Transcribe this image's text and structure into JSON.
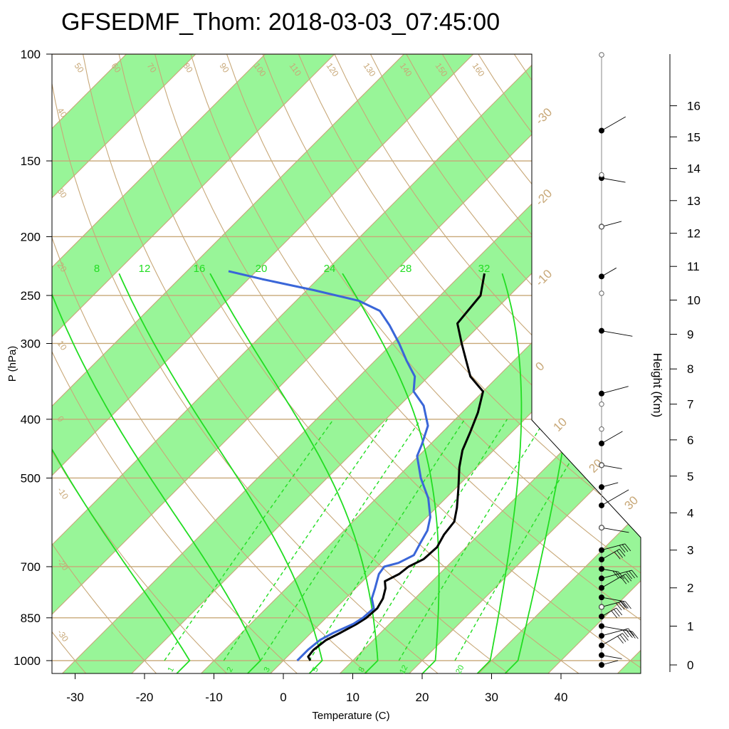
{
  "chart_data": {
    "type": "skew-t",
    "title": "GFSEDMF_Thom: 2018-03-03_07:45:00",
    "xlabel": "Temperature (C)",
    "ylabel": "P (hPa)",
    "y2label": "Height (Km)",
    "xlim": [
      -34,
      52
    ],
    "ylim": [
      1050,
      100
    ],
    "x_ticks": [
      -30,
      -20,
      -10,
      0,
      10,
      20,
      30,
      40
    ],
    "p_ticks": [
      100,
      150,
      200,
      250,
      300,
      400,
      500,
      700,
      850,
      1000
    ],
    "height_ticks": [
      0,
      1,
      2,
      3,
      4,
      5,
      6,
      7,
      8,
      9,
      10,
      11,
      12,
      13,
      14,
      15,
      16
    ],
    "isotherm_labels": [
      "-30",
      "-20",
      "-10",
      "0",
      "10",
      "20",
      "30"
    ],
    "dry_adiabat_labels": [
      "-30",
      "-20",
      "-10",
      "0",
      "10",
      "20",
      "30",
      "40",
      "50",
      "60",
      "70",
      "80",
      "90",
      "100",
      "110",
      "120",
      "130",
      "140",
      "150",
      "160"
    ],
    "moist_adiabat_labels": [
      "8",
      "12",
      "16",
      "20",
      "24",
      "28",
      "32"
    ],
    "mixing_ratio_labels": [
      "1",
      "2",
      "3",
      "5",
      "8",
      "12",
      "20"
    ],
    "colors": {
      "temperature": "#000000",
      "dewpoint": "#3a66d8",
      "isotherm_band": "#98f598",
      "isotherm_line": "#c8a878",
      "moist_adiabat": "#22dd22",
      "wind": "#000000"
    },
    "series": [
      {
        "name": "temperature",
        "points": [
          {
            "p": 1000,
            "t": 3.9
          },
          {
            "p": 985,
            "t": 3.0
          },
          {
            "p": 960,
            "t": 2.8
          },
          {
            "p": 925,
            "t": 3.2
          },
          {
            "p": 900,
            "t": 4.2
          },
          {
            "p": 870,
            "t": 5.3
          },
          {
            "p": 850,
            "t": 5.8
          },
          {
            "p": 820,
            "t": 6.0
          },
          {
            "p": 790,
            "t": 5.4
          },
          {
            "p": 760,
            "t": 4.3
          },
          {
            "p": 740,
            "t": 3.2
          },
          {
            "p": 720,
            "t": 4.2
          },
          {
            "p": 700,
            "t": 4.5
          },
          {
            "p": 680,
            "t": 5.6
          },
          {
            "p": 650,
            "t": 5.8
          },
          {
            "p": 620,
            "t": 5.0
          },
          {
            "p": 590,
            "t": 4.6
          },
          {
            "p": 560,
            "t": 3.0
          },
          {
            "p": 520,
            "t": 0.4
          },
          {
            "p": 480,
            "t": -2.5
          },
          {
            "p": 450,
            "t": -4.5
          },
          {
            "p": 420,
            "t": -6.0
          },
          {
            "p": 390,
            "t": -7.7
          },
          {
            "p": 360,
            "t": -10.0
          },
          {
            "p": 340,
            "t": -14.0
          },
          {
            "p": 300,
            "t": -20.0
          },
          {
            "p": 278,
            "t": -23.5
          },
          {
            "p": 250,
            "t": -24.2
          },
          {
            "p": 230,
            "t": -26.8
          }
        ]
      },
      {
        "name": "dewpoint",
        "points": [
          {
            "p": 1000,
            "t": 2.0
          },
          {
            "p": 960,
            "t": 2.0
          },
          {
            "p": 925,
            "t": 2.3
          },
          {
            "p": 900,
            "t": 3.2
          },
          {
            "p": 870,
            "t": 4.8
          },
          {
            "p": 850,
            "t": 5.3
          },
          {
            "p": 820,
            "t": 5.5
          },
          {
            "p": 790,
            "t": 3.8
          },
          {
            "p": 760,
            "t": 2.8
          },
          {
            "p": 720,
            "t": 1.3
          },
          {
            "p": 700,
            "t": 1.0
          },
          {
            "p": 690,
            "t": 2.5
          },
          {
            "p": 670,
            "t": 3.6
          },
          {
            "p": 640,
            "t": 2.8
          },
          {
            "p": 610,
            "t": 2.0
          },
          {
            "p": 580,
            "t": 0.5
          },
          {
            "p": 540,
            "t": -2.5
          },
          {
            "p": 500,
            "t": -6.5
          },
          {
            "p": 460,
            "t": -10.2
          },
          {
            "p": 440,
            "t": -11.2
          },
          {
            "p": 410,
            "t": -13.0
          },
          {
            "p": 380,
            "t": -16.5
          },
          {
            "p": 360,
            "t": -20.0
          },
          {
            "p": 340,
            "t": -22.0
          },
          {
            "p": 320,
            "t": -25.5
          },
          {
            "p": 300,
            "t": -29.0
          },
          {
            "p": 280,
            "t": -33.0
          },
          {
            "p": 265,
            "t": -36.5
          },
          {
            "p": 255,
            "t": -41.0
          },
          {
            "p": 245,
            "t": -49.0
          },
          {
            "p": 235,
            "t": -58.0
          },
          {
            "p": 228,
            "t": -64.0
          }
        ]
      }
    ],
    "wind_profile_heights_km": [
      0.0,
      0.25,
      0.5,
      0.75,
      1.0,
      1.25,
      1.5,
      1.75,
      2.0,
      2.25,
      2.5,
      2.75,
      3.0,
      3.6,
      4.2,
      4.7,
      5.3,
      5.9,
      7.3,
      9.1,
      10.7,
      12.2,
      13.7,
      15.2
    ]
  }
}
